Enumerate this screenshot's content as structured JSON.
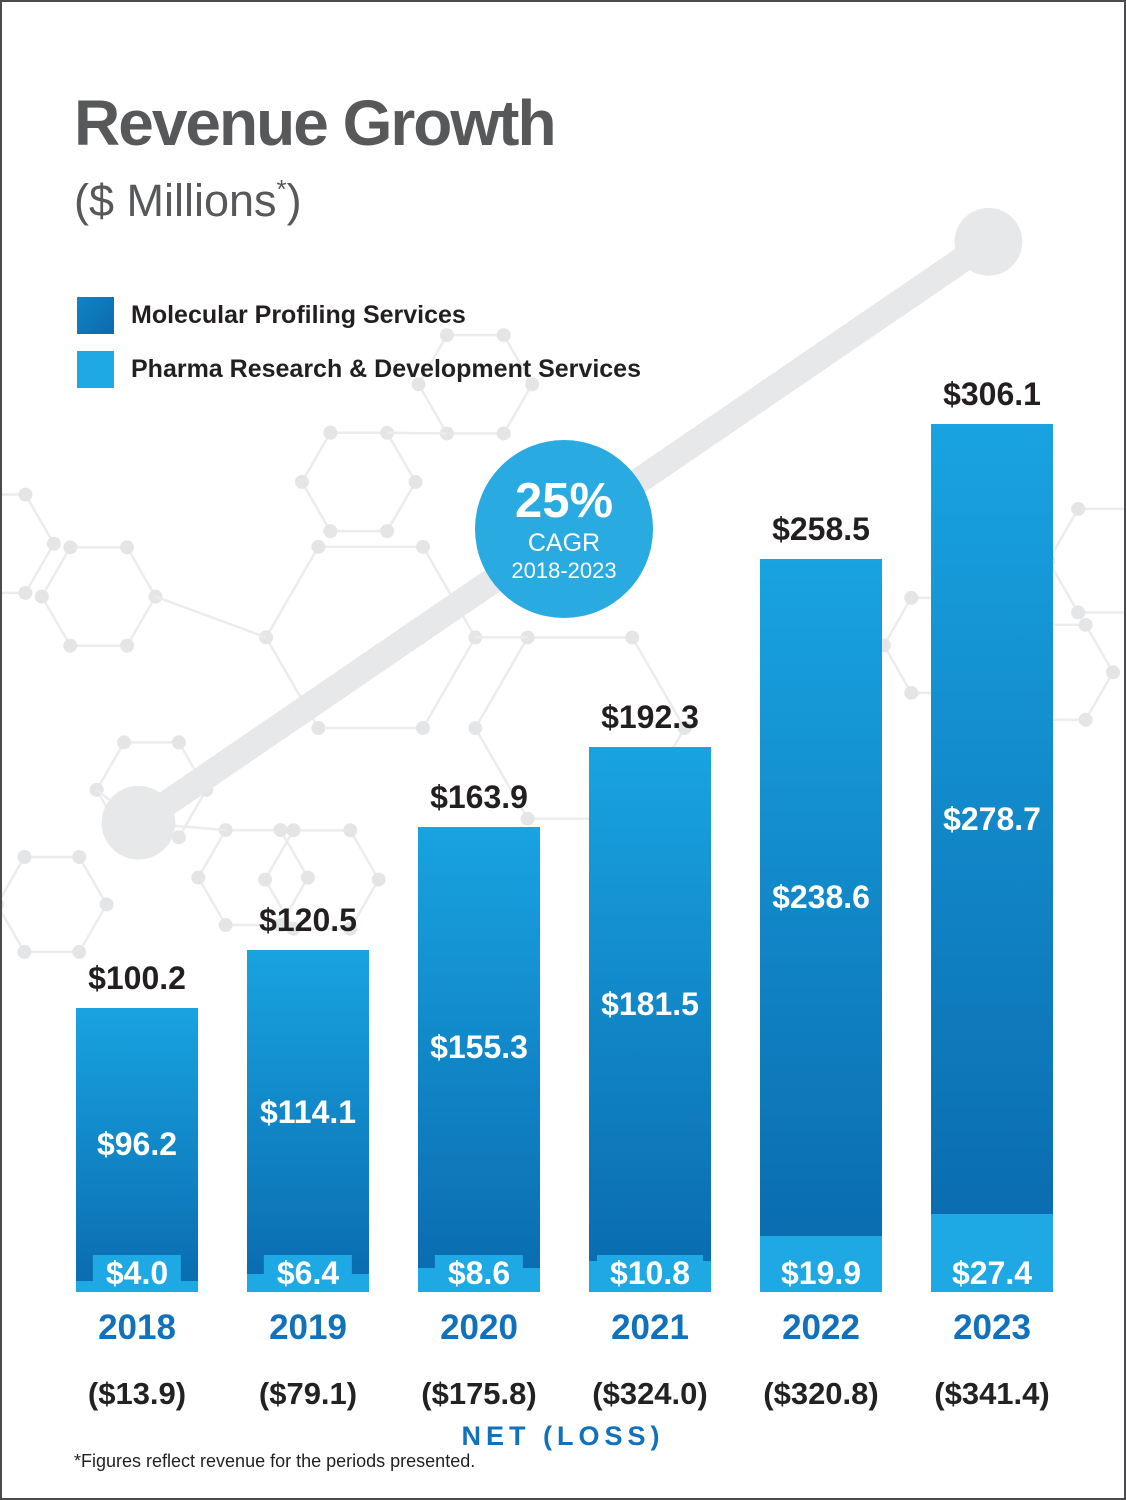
{
  "page": {
    "title": "Revenue Growth",
    "subtitle_prefix": "($ Millions",
    "subtitle_sup": "*",
    "subtitle_suffix": ")"
  },
  "legend": {
    "items": [
      {
        "label": "Molecular Profiling Services",
        "color": "#0d74b6"
      },
      {
        "label": "Pharma Research & Development Services",
        "color": "#1fa9e4"
      }
    ]
  },
  "badge": {
    "value": "25%",
    "line2": "CAGR",
    "line3": "2018-2023",
    "color": "#29abe2"
  },
  "chart_data": {
    "type": "bar",
    "stacked": true,
    "title": "Revenue Growth",
    "ylabel": "$ Millions",
    "categories": [
      "2018",
      "2019",
      "2020",
      "2021",
      "2022",
      "2023"
    ],
    "series": [
      {
        "name": "Molecular Profiling Services",
        "color": "#0d74b6",
        "values": [
          96.2,
          114.1,
          155.3,
          181.5,
          238.6,
          278.7
        ]
      },
      {
        "name": "Pharma Research & Development Services",
        "color": "#1fa9e4",
        "values": [
          4.0,
          6.4,
          8.6,
          10.8,
          19.9,
          27.4
        ]
      }
    ],
    "totals": [
      100.2,
      120.5,
      163.9,
      192.3,
      258.5,
      306.1
    ],
    "total_labels": [
      "$100.2",
      "$120.5",
      "$163.9",
      "$192.3",
      "$258.5",
      "$306.1"
    ],
    "molecular_labels": [
      "$96.2",
      "$114.1",
      "$155.3",
      "$181.5",
      "$238.6",
      "$278.7"
    ],
    "pharma_labels": [
      "$4.0",
      "$6.4",
      "$8.6",
      "$10.8",
      "$19.9",
      "$27.4"
    ],
    "net_loss_values": [
      -13.9,
      -79.1,
      -175.8,
      -324.0,
      -320.8,
      -341.4
    ],
    "net_loss_labels": [
      "($13.9)",
      "($79.1)",
      "($175.8)",
      "($324.0)",
      "($320.8)",
      "($341.4)"
    ],
    "net_loss_axis_label": "NET (LOSS)",
    "cagr_annotation": "25% CAGR 2018-2023"
  },
  "footnote": "*Figures reflect revenue for the periods presented.",
  "colors": {
    "bar_dark_gradient_top": "#19a3e1",
    "bar_dark_gradient_bottom": "#0a6db0",
    "bar_light": "#1fa9e4",
    "badge_blue": "#29abe2",
    "year_label_blue": "#1271bb",
    "title_gray": "#57585a",
    "text_dark": "#231f20",
    "pattern_gray": "#e8e9ea"
  }
}
